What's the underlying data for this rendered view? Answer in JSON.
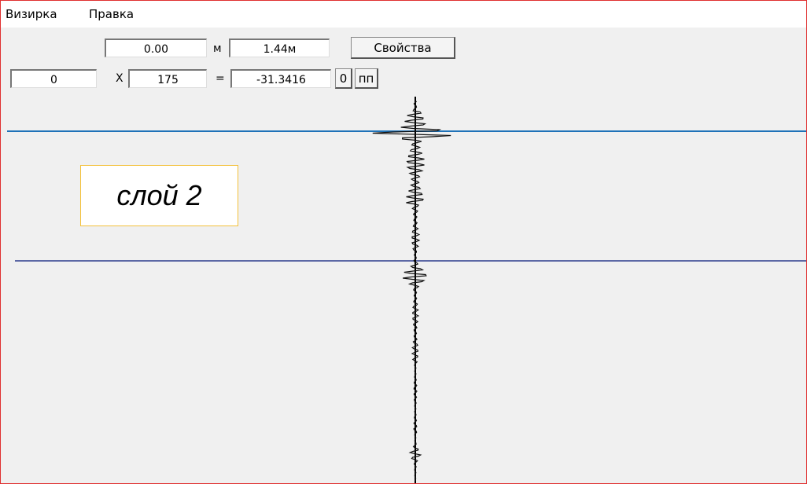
{
  "menu": {
    "items": [
      "Визирка",
      "Правка"
    ]
  },
  "toolbar": {
    "row1": {
      "start": "0.00",
      "unit": "м",
      "end": "1.44м",
      "button": "Свойства"
    },
    "row2": {
      "a": "0",
      "op1": "X",
      "b": "175",
      "op2": "=",
      "result": "-31.3416",
      "flag": "0",
      "mode": "пп"
    }
  },
  "annotation": {
    "label": "слой 2"
  }
}
